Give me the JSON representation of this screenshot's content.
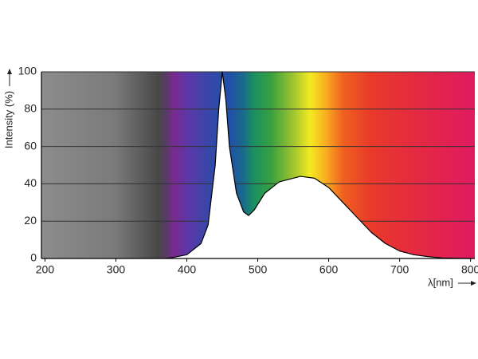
{
  "chart_data": {
    "type": "area",
    "y_label": "Intensity (%)",
    "x_label": "λ[nm]",
    "x": [
      370,
      380,
      400,
      420,
      430,
      440,
      445,
      450,
      455,
      460,
      470,
      480,
      487,
      495,
      510,
      530,
      560,
      580,
      600,
      620,
      640,
      660,
      680,
      700,
      720,
      740,
      760,
      800
    ],
    "series": [
      {
        "color": "#000000",
        "values": [
          0,
          0.5,
          2,
          8,
          18,
          50,
          80,
          100,
          85,
          60,
          35,
          25,
          23,
          26,
          35,
          41,
          44,
          43,
          38,
          30,
          22,
          14,
          8,
          4,
          2,
          1,
          0.3,
          0
        ]
      }
    ],
    "xlim": [
      195,
      806
    ],
    "ylim": [
      0,
      100
    ],
    "xticks": [
      200,
      300,
      400,
      500,
      600,
      700,
      800
    ],
    "yticks": [
      0,
      20,
      40,
      60,
      80,
      100
    ],
    "grid": true
  }
}
